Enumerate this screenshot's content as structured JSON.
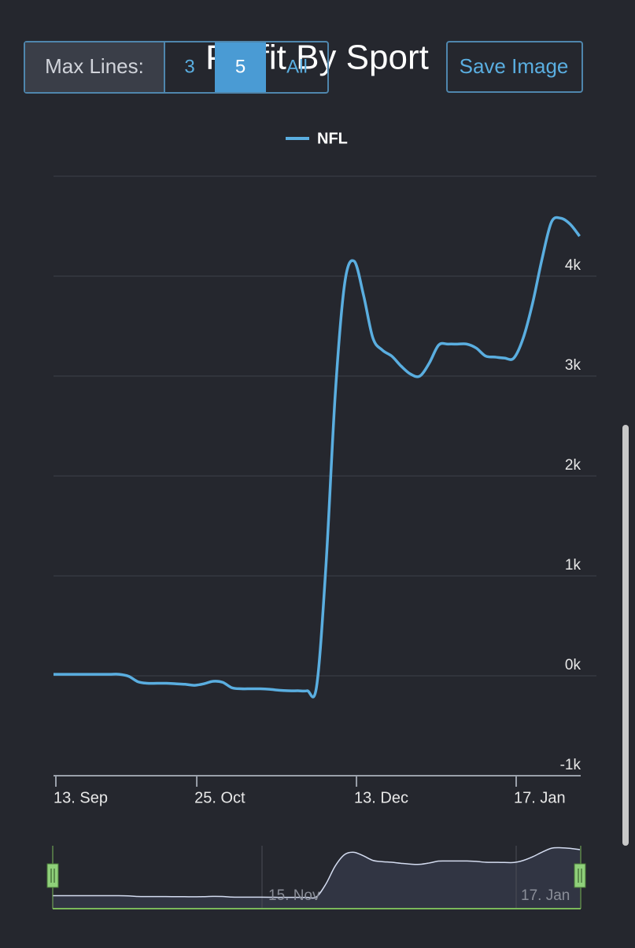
{
  "chart_data": {
    "type": "line",
    "title": "Profit By Sport",
    "categories": [
      "13. Sep",
      null,
      null,
      null,
      null,
      null,
      null,
      null,
      null,
      null,
      null,
      null,
      null,
      null,
      null,
      "25. Oct",
      null,
      null,
      null,
      null,
      null,
      null,
      null,
      null,
      null,
      null,
      null,
      null,
      null,
      null,
      null,
      null,
      "13. Dec",
      null,
      null,
      null,
      null,
      null,
      null,
      null,
      null,
      null,
      null,
      null,
      null,
      null,
      null,
      null,
      null,
      "17. Jan",
      null,
      null,
      null,
      null,
      null,
      null,
      null
    ],
    "series": [
      {
        "name": "NFL",
        "color": "#5aaee0",
        "values": [
          15,
          15,
          15,
          15,
          15,
          15,
          15,
          15,
          -5,
          -60,
          -75,
          -75,
          -75,
          -80,
          -85,
          -95,
          -80,
          -55,
          -65,
          -120,
          -130,
          -130,
          -130,
          -135,
          -145,
          -150,
          -150,
          -150,
          -110,
          1100,
          2830,
          3930,
          4150,
          3810,
          3380,
          3260,
          3200,
          3100,
          3020,
          3000,
          3130,
          3310,
          3320,
          3320,
          3320,
          3280,
          3200,
          3190,
          3180,
          3180,
          3380,
          3730,
          4170,
          4540,
          4580,
          4520,
          4400
        ]
      }
    ],
    "ylim": [
      -1000,
      5000
    ],
    "yticks": [
      {
        "value": -1000,
        "label": "-1k"
      },
      {
        "value": 0,
        "label": "0k"
      },
      {
        "value": 1000,
        "label": "1k"
      },
      {
        "value": 2000,
        "label": "2k"
      },
      {
        "value": 3000,
        "label": "3k"
      },
      {
        "value": 4000,
        "label": "4k"
      }
    ],
    "grid": true,
    "legend": "top"
  },
  "controls": {
    "max_lines_label": "Max Lines:",
    "options": [
      "3",
      "5",
      "All"
    ],
    "selected": "5",
    "save_button": "Save Image"
  },
  "navigator": {
    "labels": [
      "15. Nov",
      "17. Jan"
    ]
  }
}
